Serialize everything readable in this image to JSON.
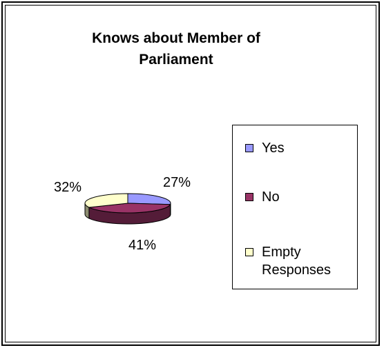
{
  "chart_data": {
    "type": "pie",
    "title": "Knows about Member of Parliament",
    "title_lines": [
      "Knows about Member of",
      "Parliament"
    ],
    "categories": [
      "Yes",
      "No",
      "Empty Responses"
    ],
    "values": [
      27,
      41,
      32
    ],
    "value_labels": [
      "27%",
      "41%",
      "32%"
    ],
    "colors": [
      "#9999ff",
      "#993366",
      "#ffffcc"
    ],
    "legend_placement": "right",
    "style": "3d-pie"
  }
}
